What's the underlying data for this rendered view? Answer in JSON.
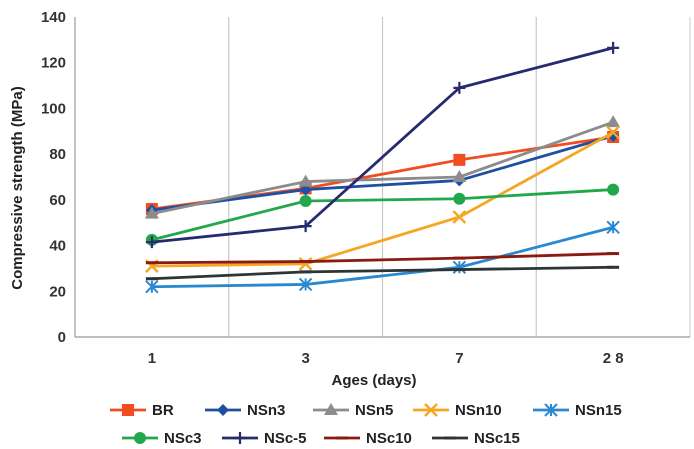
{
  "chart_data": {
    "type": "line",
    "title": "",
    "xlabel": "Ages (days)",
    "ylabel": "Compressive strength (MPa)",
    "categories": [
      "1",
      "3",
      "7",
      "2 8"
    ],
    "ylim": [
      0,
      140
    ],
    "yticks": [
      0,
      20,
      40,
      60,
      80,
      100,
      120,
      140
    ],
    "grid": "vertical",
    "legend_position": "bottom",
    "series": [
      {
        "name": "BR",
        "values": [
          56,
          65,
          77.5,
          87.5
        ],
        "color": "#f04e22",
        "marker": "square"
      },
      {
        "name": "NSn3",
        "values": [
          55.5,
          64.5,
          68.5,
          88
        ],
        "color": "#1f4fa3",
        "marker": "diamond"
      },
      {
        "name": "NSn5",
        "values": [
          54,
          68,
          70,
          94
        ],
        "color": "#8c8c8c",
        "marker": "triangle"
      },
      {
        "name": "NSn10",
        "values": [
          31,
          32,
          52.5,
          89.5
        ],
        "color": "#f5a623",
        "marker": "x"
      },
      {
        "name": "NSn15",
        "values": [
          22,
          23,
          30.5,
          48
        ],
        "color": "#2a88d0",
        "marker": "star"
      },
      {
        "name": "NSc3",
        "values": [
          42.5,
          59.5,
          60.5,
          64.5
        ],
        "color": "#22a84a",
        "marker": "circle"
      },
      {
        "name": "NSc-5",
        "values": [
          41.5,
          48.5,
          109,
          126.5
        ],
        "color": "#262a6e",
        "marker": "plus"
      },
      {
        "name": "NSc10",
        "values": [
          32.5,
          33,
          34.5,
          36.5
        ],
        "color": "#8b1a10",
        "marker": "dash"
      },
      {
        "name": "NSc15",
        "values": [
          25.5,
          28.5,
          29.5,
          30.5
        ],
        "color": "#2d3436",
        "marker": "dash"
      }
    ]
  }
}
